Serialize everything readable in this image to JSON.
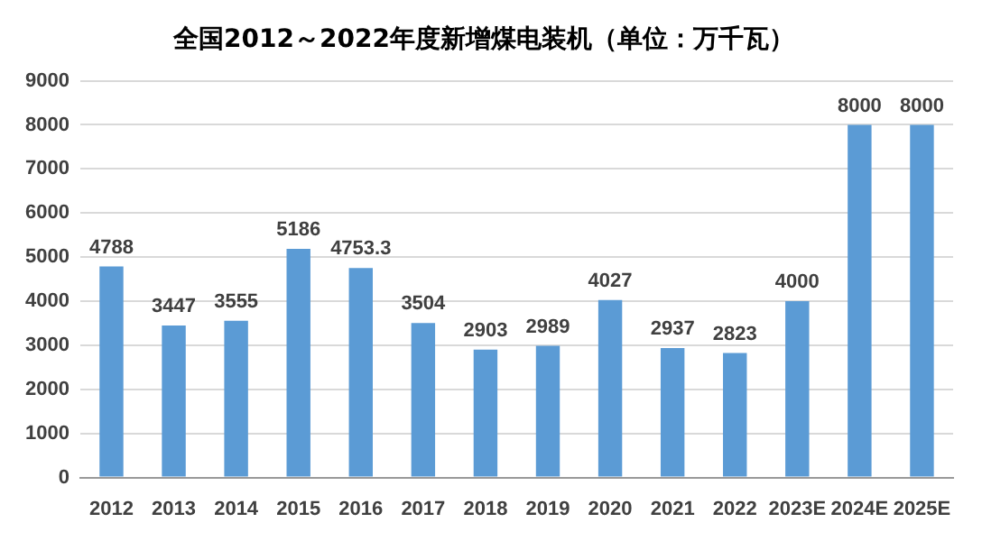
{
  "chart_data": {
    "type": "bar",
    "title": "全国2012～2022年度新增煤电装机（单位：万千瓦）",
    "categories": [
      "2012",
      "2013",
      "2014",
      "2015",
      "2016",
      "2017",
      "2018",
      "2019",
      "2020",
      "2021",
      "2022",
      "2023E",
      "2024E",
      "2025E"
    ],
    "values": [
      4788,
      3447,
      3555,
      5186,
      4753.3,
      3504,
      2903,
      2989,
      4027,
      2937,
      2823,
      4000,
      8000,
      8000
    ],
    "color": "#5b9bd5",
    "ylim": [
      0,
      9000
    ],
    "yticks": [
      0,
      1000,
      2000,
      3000,
      4000,
      5000,
      6000,
      7000,
      8000,
      9000
    ],
    "grid": "y",
    "data_labels": true,
    "legend": false
  }
}
